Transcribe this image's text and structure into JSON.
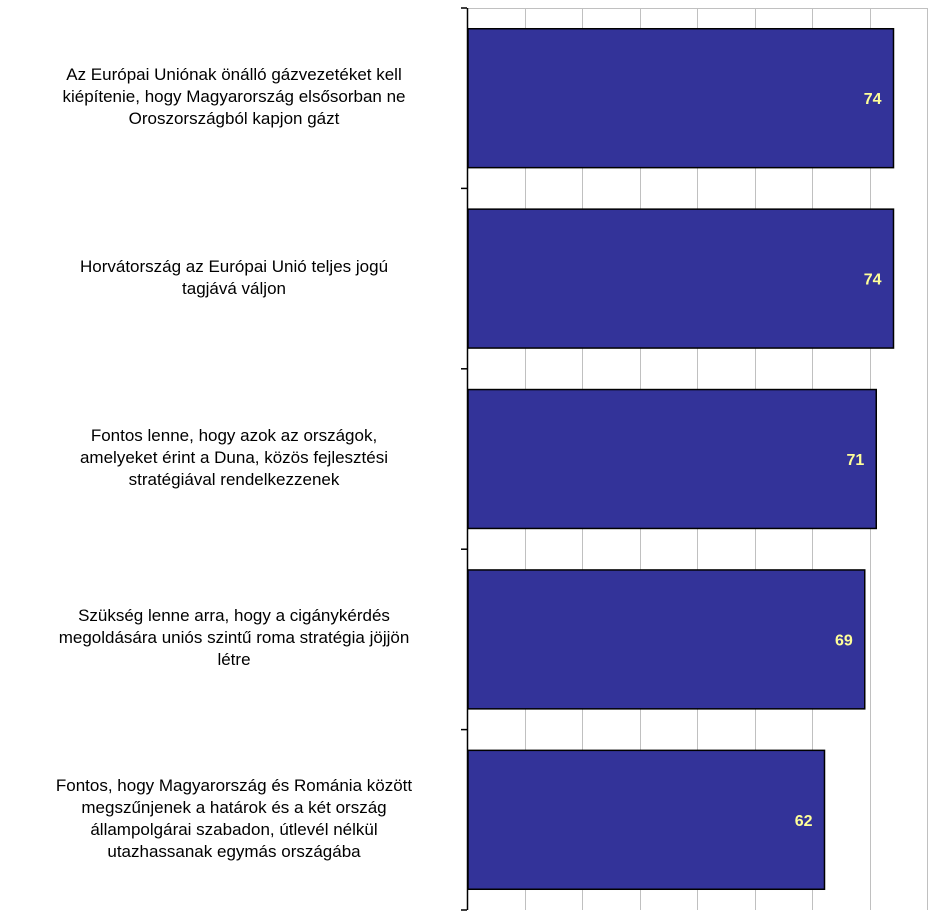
{
  "chart_data": {
    "type": "bar",
    "orientation": "horizontal",
    "categories": [
      "Az Európai Uniónak önálló gázvezetéket kell kiépítenie, hogy Magyarország elsősorban ne Oroszországból kapjon gázt",
      "Horvátország az Európai Unió teljes jogú tagjává váljon",
      "Fontos lenne, hogy azok az országok, amelyeket érint a Duna, közös fejlesztési stratégiával rendelkezzenek",
      "Szükség lenne arra, hogy a cigánykérdés megoldására uniós szintű roma stratégia jöjjön létre",
      "Fontos, hogy Magyarország és Románia között megszűnjenek a határok és a két ország állampolgárai szabadon, útlevél nélkül utazhassanak egymás országába"
    ],
    "category_lines": [
      [
        "Az Európai Uniónak önálló gázvezetéket kell",
        "kiépítenie, hogy Magyarország elsősorban ne",
        "Oroszországból kapjon gázt"
      ],
      [
        "Horvátország az Európai Unió teljes jogú",
        "tagjává váljon"
      ],
      [
        "Fontos lenne, hogy azok az országok,",
        "amelyeket érint a Duna, közös fejlesztési",
        "stratégiával rendelkezzenek"
      ],
      [
        "Szükség lenne arra, hogy a cigánykérdés",
        "megoldására uniós szintű roma stratégia jöjjön",
        "létre"
      ],
      [
        "Fontos, hogy Magyarország és Románia között",
        "megszűnjenek a határok és a két ország",
        "állampolgárai szabadon, útlevél nélkül",
        "utazhassanak egymás országába"
      ]
    ],
    "values": [
      74,
      74,
      71,
      69,
      62
    ],
    "value_labels": [
      "74",
      "74",
      "71",
      "69",
      "62"
    ],
    "xlim": [
      0,
      80
    ],
    "grid": true,
    "colors": {
      "bar": "#333399",
      "value_text": "#ffff99",
      "grid": "#c0c0c0",
      "axis": "#000000"
    }
  }
}
